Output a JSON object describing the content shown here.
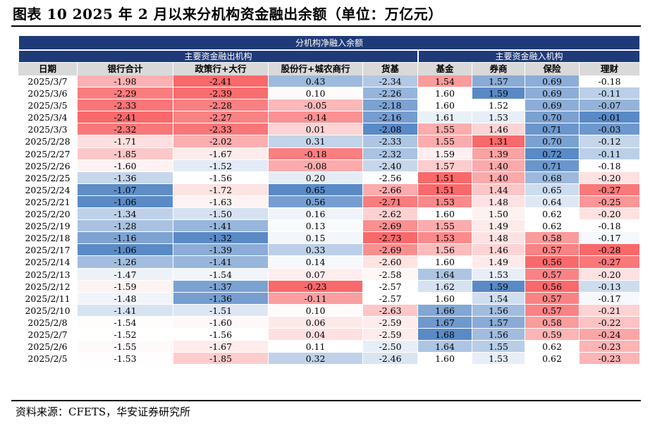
{
  "title": "图表 10 2025 年 2 月以来分机构资金融出余额（单位：万亿元）",
  "source": "资料来源：CFETS，华安证券研究所",
  "table": {
    "band_title": "分机构净融入余额",
    "group_lend": "主要资金融出机构",
    "group_borrow": "主要资金融入机构",
    "columns": [
      "日期",
      "银行合计",
      "政策行+大行",
      "股份行+城农商行",
      "货基",
      "基金",
      "券商",
      "保险",
      "理财"
    ],
    "rows": [
      [
        "2025/3/7",
        "-1.98",
        "-2.41",
        "0.43",
        "-2.34",
        "1.54",
        "1.57",
        "0.69",
        "-0.18"
      ],
      [
        "2025/3/6",
        "-2.29",
        "-2.39",
        "0.10",
        "-2.26",
        "1.60",
        "1.59",
        "0.69",
        "-0.11"
      ],
      [
        "2025/3/5",
        "-2.33",
        "-2.28",
        "-0.05",
        "-2.18",
        "1.60",
        "1.52",
        "0.69",
        "-0.07"
      ],
      [
        "2025/3/4",
        "-2.41",
        "-2.27",
        "-0.14",
        "-2.16",
        "1.61",
        "1.53",
        "0.70",
        "-0.01"
      ],
      [
        "2025/3/3",
        "-2.32",
        "-2.33",
        "0.01",
        "-2.08",
        "1.55",
        "1.46",
        "0.71",
        "-0.03"
      ],
      [
        "2025/2/28",
        "-1.71",
        "-2.02",
        "0.31",
        "-2.33",
        "1.55",
        "1.31",
        "0.70",
        "-0.12"
      ],
      [
        "2025/2/27",
        "-1.85",
        "-1.67",
        "-0.18",
        "-2.32",
        "1.59",
        "1.39",
        "0.72",
        "-0.11"
      ],
      [
        "2025/2/26",
        "-1.60",
        "-1.52",
        "-0.08",
        "-2.40",
        "1.57",
        "1.40",
        "0.71",
        "-0.18"
      ],
      [
        "2025/2/25",
        "-1.36",
        "-1.56",
        "0.20",
        "-2.56",
        "1.51",
        "1.40",
        "0.68",
        "-0.20"
      ],
      [
        "2025/2/24",
        "-1.07",
        "-1.72",
        "0.65",
        "-2.66",
        "1.51",
        "1.44",
        "0.65",
        "-0.27"
      ],
      [
        "2025/2/21",
        "-1.06",
        "-1.63",
        "0.56",
        "-2.71",
        "1.53",
        "1.48",
        "0.64",
        "-0.25"
      ],
      [
        "2025/2/20",
        "-1.34",
        "-1.50",
        "0.16",
        "-2.62",
        "1.60",
        "1.50",
        "0.62",
        "-0.20"
      ],
      [
        "2025/2/19",
        "-1.28",
        "-1.41",
        "0.13",
        "-2.69",
        "1.55",
        "1.49",
        "0.62",
        "-0.18"
      ],
      [
        "2025/2/18",
        "-1.16",
        "-1.32",
        "0.15",
        "-2.73",
        "1.53",
        "1.48",
        "0.58",
        "-0.17"
      ],
      [
        "2025/2/17",
        "-1.06",
        "-1.39",
        "0.33",
        "-2.69",
        "1.56",
        "1.46",
        "0.57",
        "-0.28"
      ],
      [
        "2025/2/14",
        "-1.26",
        "-1.41",
        "0.14",
        "-2.60",
        "1.60",
        "1.49",
        "0.56",
        "-0.27"
      ],
      [
        "2025/2/13",
        "-1.47",
        "-1.54",
        "0.07",
        "-2.58",
        "1.64",
        "1.53",
        "0.57",
        "-0.20"
      ],
      [
        "2025/2/12",
        "-1.59",
        "-1.37",
        "-0.23",
        "-2.57",
        "1.62",
        "1.59",
        "0.56",
        "-0.13"
      ],
      [
        "2025/2/11",
        "-1.48",
        "-1.36",
        "-0.11",
        "-2.57",
        "1.60",
        "1.54",
        "0.57",
        "-0.17"
      ],
      [
        "2025/2/10",
        "-1.41",
        "-1.51",
        "0.10",
        "-2.63",
        "1.66",
        "1.56",
        "0.57",
        "-0.21"
      ],
      [
        "2025/2/8",
        "-1.54",
        "-1.60",
        "0.06",
        "-2.59",
        "1.67",
        "1.57",
        "0.58",
        "-0.22"
      ],
      [
        "2025/2/7",
        "-1.52",
        "-1.56",
        "0.04",
        "-2.59",
        "1.68",
        "1.56",
        "0.59",
        "-0.24"
      ],
      [
        "2025/2/6",
        "-1.55",
        "-1.67",
        "0.11",
        "-2.50",
        "1.64",
        "1.55",
        "0.62",
        "-0.23"
      ],
      [
        "2025/2/5",
        "-1.53",
        "-1.85",
        "0.32",
        "-2.46",
        "1.60",
        "1.53",
        "0.62",
        "-0.23"
      ]
    ],
    "heatmap_colors": {
      "low": "#f8696b",
      "mid": "#ffffff",
      "high": "#5a8ac6"
    }
  }
}
